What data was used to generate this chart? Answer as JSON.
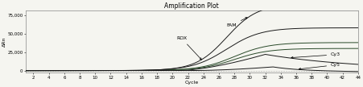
{
  "title": "Amplification Plot",
  "xlabel": "Cycle",
  "ylabel": "ΔRn",
  "xlim": [
    1,
    44
  ],
  "ylim": [
    -3000,
    82000
  ],
  "yticks": [
    0,
    25000,
    50000,
    75000
  ],
  "ytick_labels": [
    "0",
    "25,000",
    "50,000",
    "75,000"
  ],
  "xticks": [
    2,
    4,
    6,
    8,
    10,
    12,
    14,
    16,
    18,
    20,
    22,
    24,
    26,
    28,
    30,
    32,
    34,
    36,
    38,
    40,
    42,
    44
  ],
  "background_color": "#f5f5f0",
  "title_fontsize": 5.5,
  "axis_fontsize": 4.5,
  "tick_fontsize": 4,
  "annot_fontsize": 4.5
}
